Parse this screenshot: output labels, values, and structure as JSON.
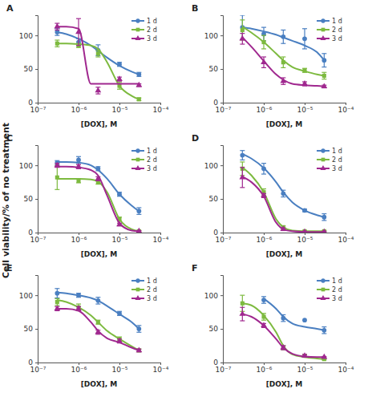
{
  "y_label": "Cell viability/% of no treatment",
  "chart_data": [
    {
      "type": "scatter",
      "title": "A",
      "x_label": "[DOX], M",
      "log": "x",
      "legend": "top-right",
      "x": [
        3e-07,
        1e-06,
        3e-06,
        1e-05,
        3e-05
      ],
      "curve_x": [
        3e-07,
        5e-07,
        1e-06,
        2e-06,
        3e-06,
        5e-06,
        1e-05,
        2e-05,
        3e-05
      ],
      "xlim": [
        1e-07,
        0.0001
      ],
      "xticks": [
        {
          "value": 1e-07,
          "label": "10⁻⁷"
        },
        {
          "value": 1e-06,
          "label": "10⁻⁶"
        },
        {
          "value": 1e-05,
          "label": "10⁻⁵"
        },
        {
          "value": 0.0001,
          "label": "10⁻⁴"
        }
      ],
      "ylim": [
        0,
        130
      ],
      "yticks": [
        0,
        50,
        100
      ],
      "series": [
        {
          "name": "1 d",
          "color": "#4a7fc1",
          "marker": "circle",
          "values": [
            105,
            90,
            78,
            57,
            42
          ],
          "errors": [
            5,
            5,
            8,
            3,
            3
          ],
          "curve": [
            105,
            102,
            95,
            85,
            77,
            67,
            55,
            46,
            42
          ]
        },
        {
          "name": "2 d",
          "color": "#7dba3f",
          "marker": "square",
          "values": [
            88,
            85,
            73,
            25,
            5
          ],
          "errors": [
            5,
            3,
            5,
            5,
            2
          ],
          "curve": [
            88,
            88,
            87,
            85,
            80,
            60,
            25,
            10,
            5
          ]
        },
        {
          "name": "3 d",
          "color": "#a0288f",
          "marker": "triangle",
          "values": [
            113,
            105,
            18,
            35,
            26
          ],
          "errors": [
            5,
            20,
            5,
            3,
            2
          ],
          "curve": [
            113,
            113,
            110,
            28,
            28,
            28,
            28,
            28,
            28
          ]
        }
      ]
    },
    {
      "type": "scatter",
      "title": "B",
      "x_label": "[DOX], M",
      "log": "x",
      "legend": "top-right",
      "x": [
        3e-07,
        1e-06,
        3e-06,
        1e-05,
        3e-05
      ],
      "curve_x": [
        3e-07,
        5e-07,
        1e-06,
        2e-06,
        3e-06,
        5e-06,
        1e-05,
        2e-05,
        3e-05
      ],
      "xlim": [
        1e-07,
        0.0001
      ],
      "xticks": [
        {
          "value": 1e-07,
          "label": "10⁻⁷"
        },
        {
          "value": 1e-06,
          "label": "10⁻⁶"
        },
        {
          "value": 1e-05,
          "label": "10⁻⁵"
        },
        {
          "value": 0.0001,
          "label": "10⁻⁴"
        }
      ],
      "ylim": [
        0,
        130
      ],
      "yticks": [
        0,
        50,
        100
      ],
      "series": [
        {
          "name": "1 d",
          "color": "#4a7fc1",
          "marker": "circle",
          "values": [
            112,
            102,
            98,
            95,
            63
          ],
          "errors": [
            18,
            10,
            10,
            15,
            10
          ],
          "curve": [
            112,
            110,
            106,
            101,
            97,
            92,
            85,
            75,
            63
          ]
        },
        {
          "name": "2 d",
          "color": "#7dba3f",
          "marker": "square",
          "values": [
            108,
            90,
            60,
            48,
            40
          ],
          "errors": [
            15,
            10,
            8,
            3,
            5
          ],
          "curve": [
            113,
            104,
            90,
            73,
            63,
            53,
            47,
            42,
            40
          ]
        },
        {
          "name": "3 d",
          "color": "#a0288f",
          "marker": "triangle",
          "values": [
            95,
            60,
            32,
            28,
            24
          ],
          "errors": [
            8,
            8,
            5,
            3,
            2
          ],
          "curve": [
            97,
            83,
            62,
            42,
            34,
            28,
            26,
            25,
            24
          ]
        }
      ]
    },
    {
      "type": "scatter",
      "title": "C",
      "x_label": "[DOX], M",
      "log": "x",
      "legend": "top-right",
      "x": [
        3e-07,
        1e-06,
        3e-06,
        1e-05,
        3e-05
      ],
      "curve_x": [
        3e-07,
        5e-07,
        1e-06,
        2e-06,
        3e-06,
        5e-06,
        1e-05,
        2e-05,
        3e-05
      ],
      "xlim": [
        1e-07,
        0.0001
      ],
      "xticks": [
        {
          "value": 1e-07,
          "label": "10⁻⁷"
        },
        {
          "value": 1e-06,
          "label": "10⁻⁶"
        },
        {
          "value": 1e-05,
          "label": "10⁻⁵"
        },
        {
          "value": 0.0001,
          "label": "10⁻⁴"
        }
      ],
      "ylim": [
        0,
        130
      ],
      "yticks": [
        0,
        50,
        100
      ],
      "series": [
        {
          "name": "1 d",
          "color": "#4a7fc1",
          "marker": "circle",
          "values": [
            104,
            108,
            95,
            57,
            32
          ],
          "errors": [
            3,
            5,
            3,
            3,
            5
          ],
          "curve": [
            105,
            105,
            104,
            100,
            93,
            80,
            57,
            40,
            32
          ]
        },
        {
          "name": "2 d",
          "color": "#7dba3f",
          "marker": "square",
          "values": [
            82,
            77,
            75,
            20,
            2
          ],
          "errors": [
            18,
            3,
            3,
            3,
            1
          ],
          "curve": [
            80,
            80,
            80,
            79,
            76,
            60,
            20,
            5,
            2
          ]
        },
        {
          "name": "3 d",
          "color": "#a0288f",
          "marker": "triangle",
          "values": [
            100,
            98,
            80,
            12,
            2
          ],
          "errors": [
            3,
            3,
            3,
            2,
            1
          ],
          "curve": [
            98,
            98,
            97,
            93,
            85,
            55,
            14,
            3,
            2
          ]
        }
      ]
    },
    {
      "type": "scatter",
      "title": "D",
      "x_label": "[DOX], M",
      "log": "x",
      "legend": "top-right",
      "x": [
        3e-07,
        1e-06,
        3e-06,
        1e-05,
        3e-05
      ],
      "curve_x": [
        3e-07,
        5e-07,
        1e-06,
        2e-06,
        3e-06,
        5e-06,
        1e-05,
        2e-05,
        3e-05
      ],
      "xlim": [
        1e-07,
        0.0001
      ],
      "xticks": [
        {
          "value": 1e-07,
          "label": "10⁻⁷"
        },
        {
          "value": 1e-06,
          "label": "10⁻⁶"
        },
        {
          "value": 1e-05,
          "label": "10⁻⁵"
        },
        {
          "value": 0.0001,
          "label": "10⁻⁴"
        }
      ],
      "ylim": [
        0,
        130
      ],
      "yticks": [
        0,
        50,
        100
      ],
      "series": [
        {
          "name": "1 d",
          "color": "#4a7fc1",
          "marker": "circle",
          "values": [
            115,
            95,
            58,
            33,
            23
          ],
          "errors": [
            7,
            8,
            5,
            2,
            5
          ],
          "curve": [
            117,
            110,
            96,
            75,
            60,
            45,
            33,
            26,
            23
          ]
        },
        {
          "name": "2 d",
          "color": "#7dba3f",
          "marker": "square",
          "values": [
            95,
            60,
            8,
            2,
            2
          ],
          "errors": [
            10,
            5,
            2,
            1,
            1
          ],
          "curve": [
            97,
            85,
            60,
            20,
            8,
            3,
            2,
            2,
            2
          ]
        },
        {
          "name": "3 d",
          "color": "#a0288f",
          "marker": "triangle",
          "values": [
            82,
            55,
            5,
            1,
            1
          ],
          "errors": [
            15,
            3,
            2,
            1,
            1
          ],
          "curve": [
            83,
            75,
            54,
            15,
            5,
            2,
            1,
            1,
            1
          ]
        }
      ]
    },
    {
      "type": "scatter",
      "title": "E",
      "x_label": "[DOX], M",
      "log": "x",
      "legend": "top-right",
      "x": [
        3e-07,
        1e-06,
        3e-06,
        1e-05,
        3e-05
      ],
      "curve_x": [
        3e-07,
        5e-07,
        1e-06,
        2e-06,
        3e-06,
        5e-06,
        1e-05,
        2e-05,
        3e-05
      ],
      "xlim": [
        1e-07,
        0.0001
      ],
      "xticks": [
        {
          "value": 1e-07,
          "label": "10⁻⁷"
        },
        {
          "value": 1e-06,
          "label": "10⁻⁶"
        },
        {
          "value": 1e-05,
          "label": "10⁻⁵"
        },
        {
          "value": 0.0001,
          "label": "10⁻⁴"
        }
      ],
      "ylim": [
        0,
        130
      ],
      "yticks": [
        0,
        50,
        100
      ],
      "series": [
        {
          "name": "1 d",
          "color": "#4a7fc1",
          "marker": "circle",
          "values": [
            103,
            100,
            92,
            73,
            50
          ],
          "errors": [
            7,
            3,
            5,
            3,
            5
          ],
          "curve": [
            104,
            103,
            100,
            96,
            92,
            84,
            72,
            60,
            50
          ]
        },
        {
          "name": "2 d",
          "color": "#7dba3f",
          "marker": "square",
          "values": [
            90,
            82,
            60,
            35,
            18
          ],
          "errors": [
            5,
            5,
            3,
            3,
            2
          ],
          "curve": [
            93,
            90,
            82,
            70,
            60,
            47,
            35,
            24,
            18
          ]
        },
        {
          "name": "3 d",
          "color": "#a0288f",
          "marker": "triangle",
          "values": [
            80,
            80,
            45,
            32,
            18
          ],
          "errors": [
            3,
            3,
            3,
            3,
            2
          ],
          "curve": [
            80,
            80,
            77,
            60,
            47,
            36,
            30,
            22,
            18
          ]
        }
      ]
    },
    {
      "type": "scatter",
      "title": "F",
      "x_label": "[DOX], M",
      "log": "x",
      "legend": "top-right",
      "x": [
        3e-07,
        1e-06,
        3e-06,
        1e-05,
        3e-05
      ],
      "curve_x": [
        3e-07,
        5e-07,
        1e-06,
        2e-06,
        3e-06,
        5e-06,
        1e-05,
        2e-05,
        3e-05
      ],
      "xlim": [
        1e-07,
        0.0001
      ],
      "xticks": [
        {
          "value": 1e-07,
          "label": "10⁻⁷"
        },
        {
          "value": 1e-06,
          "label": "10⁻⁶"
        },
        {
          "value": 1e-05,
          "label": "10⁻⁵"
        },
        {
          "value": 0.0001,
          "label": "10⁻⁴"
        }
      ],
      "ylim": [
        0,
        130
      ],
      "yticks": [
        0,
        50,
        100
      ],
      "series": [
        {
          "name": "1 d",
          "color": "#4a7fc1",
          "marker": "circle",
          "values": [
            null,
            93,
            66,
            63,
            48
          ],
          "errors": [
            null,
            5,
            5,
            null,
            5
          ],
          "curve": [
            null,
            null,
            95,
            80,
            68,
            58,
            53,
            50,
            48
          ]
        },
        {
          "name": "2 d",
          "color": "#7dba3f",
          "marker": "square",
          "values": [
            88,
            68,
            22,
            10,
            5
          ],
          "errors": [
            12,
            5,
            3,
            2,
            1
          ],
          "curve": [
            88,
            85,
            70,
            45,
            25,
            12,
            8,
            6,
            5
          ]
        },
        {
          "name": "3 d",
          "color": "#a0288f",
          "marker": "triangle",
          "values": [
            72,
            55,
            22,
            10,
            8
          ],
          "errors": [
            10,
            3,
            3,
            2,
            1
          ],
          "curve": [
            72,
            68,
            55,
            35,
            22,
            13,
            9,
            8,
            8
          ]
        }
      ]
    }
  ]
}
